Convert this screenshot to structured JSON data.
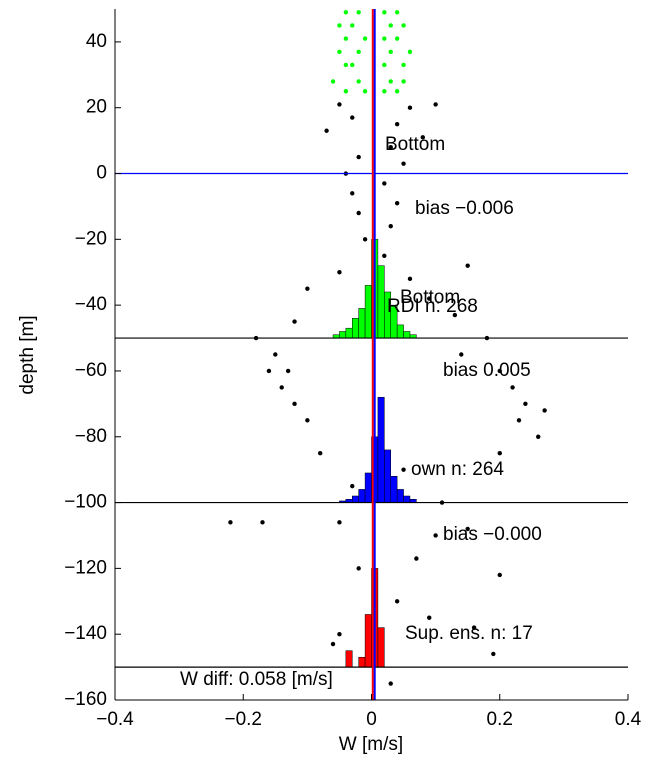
{
  "chart_data": {
    "type": "scatter-hist",
    "xlabel": "W [m/s]",
    "ylabel": "depth [m]",
    "xlim": [
      -0.4,
      0.4
    ],
    "ylim": [
      -160,
      50
    ],
    "xticks": [
      {
        "value": -0.4,
        "label": "−0.4"
      },
      {
        "value": -0.2,
        "label": "−0.2"
      },
      0,
      0.2,
      0.4
    ],
    "yticks": [
      40,
      20,
      0,
      {
        "value": -20,
        "label": "−20"
      },
      {
        "value": -40,
        "label": "−40"
      },
      {
        "value": -60,
        "label": "−60"
      },
      {
        "value": -80,
        "label": "−80"
      },
      {
        "value": -100,
        "label": "−100"
      },
      {
        "value": -120,
        "label": "−120"
      },
      {
        "value": -140,
        "label": "−140"
      },
      {
        "value": -160,
        "label": "−160"
      }
    ],
    "series": [
      {
        "color": "#00ff00",
        "x": [
          -0.04,
          -0.02,
          0.02,
          0.04,
          -0.05,
          -0.03,
          0.03,
          0.05,
          -0.04,
          -0.01,
          0.02,
          0.04,
          -0.05,
          -0.02,
          0.03,
          0.06,
          -0.04,
          -0.03,
          0.02,
          0.05,
          -0.06,
          -0.02,
          0.03,
          0.05,
          -0.04,
          -0.01,
          0.02,
          0.04
        ],
        "values": [
          49,
          49,
          49,
          49,
          45,
          45,
          45,
          45,
          41,
          41,
          41,
          41,
          37,
          37,
          37,
          37,
          33,
          33,
          33,
          33,
          28,
          28,
          28,
          28,
          25,
          25,
          25,
          25
        ]
      },
      {
        "color": "#000000",
        "x": [
          -0.05,
          0.06,
          0.1,
          -0.03,
          0.04,
          -0.07,
          0.08,
          0.03,
          -0.02,
          0.05,
          -0.04,
          0.02,
          -0.03,
          0.04,
          -0.02,
          0.03,
          -0.01,
          0.02,
          -0.05,
          0.06,
          0.15,
          -0.1,
          0.09,
          -0.12,
          0.13,
          -0.18,
          0.18,
          -0.15,
          0.14,
          -0.16,
          0.2,
          -0.14,
          0.22,
          -0.12,
          0.24,
          -0.1,
          0.23,
          0.26,
          -0.08,
          0.2,
          0.05,
          -0.03,
          -0.22,
          -0.17,
          -0.05,
          0.1,
          0.15,
          0.07,
          -0.02,
          0.2,
          0.04,
          0.09,
          -0.05,
          -0.06,
          0.16,
          0.19,
          0.03,
          0.11,
          -0.13,
          0.27
        ],
        "values": [
          21,
          20,
          21,
          17,
          15,
          13,
          11,
          8,
          5,
          3,
          0,
          -3,
          -6,
          -9,
          -12,
          -16,
          -20,
          -25,
          -30,
          -32,
          -28,
          -35,
          -38,
          -45,
          -43,
          -50,
          -50,
          -55,
          -55,
          -60,
          -60,
          -65,
          -65,
          -70,
          -70,
          -75,
          -75,
          -80,
          -85,
          -85,
          -90,
          -95,
          -106,
          -106,
          -106,
          -110,
          -108,
          -117,
          -120,
          -122,
          -130,
          -135,
          -140,
          -143,
          -138,
          -146,
          -155,
          -100,
          -60,
          -72
        ]
      }
    ],
    "histograms": [
      {
        "color": "#00ff00",
        "baseline": -50,
        "bins": [
          -0.06,
          -0.05,
          -0.04,
          -0.03,
          -0.02,
          -0.01,
          0,
          0.01,
          0.02,
          0.03,
          0.04,
          0.05,
          0.06,
          0.07
        ],
        "heights": [
          1,
          2,
          3,
          6,
          9,
          16,
          30,
          22,
          14,
          10,
          4,
          2,
          1
        ]
      },
      {
        "color": "#0000ff",
        "baseline": -100,
        "bins": [
          -0.05,
          -0.04,
          -0.03,
          -0.02,
          -0.01,
          0,
          0.01,
          0.02,
          0.03,
          0.04,
          0.05,
          0.06,
          0.07
        ],
        "heights": [
          0.5,
          1,
          2,
          4,
          9,
          20,
          32,
          16,
          8,
          4,
          2,
          1
        ]
      },
      {
        "color": "#ff0000",
        "baseline": -150,
        "bins": [
          -0.05,
          -0.04,
          -0.03,
          -0.02,
          -0.01,
          0,
          0.01,
          0.02
        ],
        "heights": [
          0,
          5,
          0,
          3,
          16,
          30,
          12
        ]
      }
    ],
    "hlines": [
      {
        "y": 0,
        "color": "#0000ff"
      },
      {
        "y": -50,
        "color": "#000000"
      },
      {
        "y": -100,
        "color": "#000000"
      },
      {
        "y": -150,
        "color": "#000000"
      }
    ],
    "vlines": [
      {
        "x": 0.002,
        "color": "#ff0000"
      },
      {
        "x": 0.005,
        "color": "#0000ff"
      }
    ],
    "annotations": [
      {
        "text": "Bottom",
        "color": "#000000"
      },
      {
        "text": "bias −0.006",
        "color": "#00ff00"
      },
      {
        "text": "RDI n: 268",
        "color": "#000000"
      },
      {
        "text": "Bottom",
        "color": "#000000"
      },
      {
        "text": "bias 0.005",
        "color": "#0000ff"
      },
      {
        "text": "own n: 264",
        "color": "#000000"
      },
      {
        "text": "bias −0.000",
        "color": "#ff0000"
      },
      {
        "text": "Sup. ens. n: 17",
        "color": "#000000"
      },
      {
        "text": "W diff:  0.058 [m/s]",
        "color": "#000000"
      }
    ]
  }
}
